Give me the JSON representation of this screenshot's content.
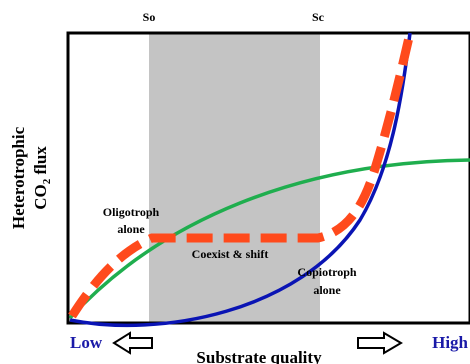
{
  "markers": {
    "so": "So",
    "sc": "Sc"
  },
  "y_axis": {
    "line1": "Heterotrophic",
    "line2_prefix": "CO",
    "line2_sub": "2",
    "line2_suffix": " flux"
  },
  "x_axis": {
    "label": "Substrate quality",
    "low": "Low",
    "high": "High"
  },
  "regions": {
    "oligotroph": {
      "line1": "Oligotroph",
      "line2": "alone"
    },
    "coexist": "Coexist & shift",
    "copiotroph": {
      "line1": "Copiotroph",
      "line2": "alone"
    }
  },
  "colors": {
    "copiotroph_curve": "#0a14b4",
    "oligotroph_curve": "#1fae4e",
    "combined_curve": "#ff4a1c",
    "coexist_band": "#c4c4c4",
    "low_label": "#1a1aa8",
    "high_label": "#1a1aa8"
  }
}
